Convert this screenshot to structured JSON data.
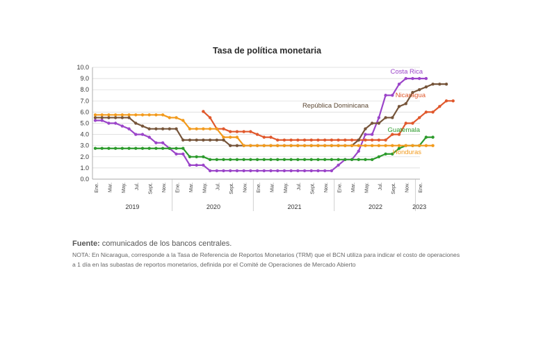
{
  "chart_data": {
    "type": "line",
    "title": "Tasa de política monetaria",
    "xlabel": "",
    "ylabel": "",
    "ylim": [
      0,
      10
    ],
    "yticks": [
      "0.0",
      "1.0",
      "2.0",
      "3.0",
      "4.0",
      "5.0",
      "6.0",
      "7.0",
      "8.0",
      "9.0",
      "10.0"
    ],
    "month_ticks": [
      "Ene.",
      "Mar.",
      "May.",
      "Jul.",
      "Sept.",
      "Nov.",
      "Ene.",
      "Mar.",
      "May.",
      "Jul.",
      "Sept.",
      "Nov.",
      "Ene.",
      "Mar.",
      "May.",
      "Jul.",
      "Sept.",
      "Nov.",
      "Ene.",
      "Mar.",
      "May.",
      "Jul.",
      "Sept.",
      "Nov.",
      "Ene."
    ],
    "years": [
      "2019",
      "2020",
      "2021",
      "2022",
      "2023"
    ],
    "grid": true,
    "series": [
      {
        "name": "Costa Rica",
        "color": "#9b45c9",
        "start": 0,
        "values": [
          5.25,
          5.25,
          5.0,
          5.0,
          4.75,
          4.5,
          4.0,
          4.0,
          3.75,
          3.25,
          3.25,
          2.75,
          2.25,
          2.25,
          1.25,
          1.25,
          1.25,
          0.75,
          0.75,
          0.75,
          0.75,
          0.75,
          0.75,
          0.75,
          0.75,
          0.75,
          0.75,
          0.75,
          0.75,
          0.75,
          0.75,
          0.75,
          0.75,
          0.75,
          0.75,
          0.75,
          1.25,
          1.75,
          1.75,
          2.5,
          4.0,
          4.0,
          5.5,
          7.5,
          7.5,
          8.5,
          9.0,
          9.0,
          9.0,
          9.0
        ]
      },
      {
        "name": "Nicaragua",
        "color": "#e0582c",
        "start": 16,
        "values": [
          6.05,
          5.5,
          4.5,
          4.5,
          4.25,
          4.25,
          4.25,
          4.25,
          4.0,
          3.75,
          3.75,
          3.5,
          3.5,
          3.5,
          3.5,
          3.5,
          3.5,
          3.5,
          3.5,
          3.5,
          3.5,
          3.5,
          3.5,
          3.5,
          3.5,
          3.5,
          3.5,
          3.5,
          4.0,
          4.0,
          5.0,
          5.0,
          5.5,
          6.0,
          6.0,
          6.5,
          7.0,
          7.0
        ]
      },
      {
        "name": "República Dominicana",
        "color": "#76553a",
        "start": 0,
        "values": [
          5.5,
          5.5,
          5.5,
          5.5,
          5.5,
          5.5,
          5.0,
          4.75,
          4.5,
          4.5,
          4.5,
          4.5,
          4.5,
          3.5,
          3.5,
          3.5,
          3.5,
          3.5,
          3.5,
          3.5,
          3.0,
          3.0,
          3.0,
          3.0,
          3.0,
          3.0,
          3.0,
          3.0,
          3.0,
          3.0,
          3.0,
          3.0,
          3.0,
          3.0,
          3.0,
          3.0,
          3.0,
          3.0,
          3.0,
          3.5,
          4.5,
          5.0,
          5.0,
          5.5,
          5.5,
          6.5,
          6.75,
          7.75,
          8.0,
          8.25,
          8.5,
          8.5,
          8.5
        ]
      },
      {
        "name": "Guatemala",
        "color": "#2d9b2d",
        "start": 0,
        "values": [
          2.75,
          2.75,
          2.75,
          2.75,
          2.75,
          2.75,
          2.75,
          2.75,
          2.75,
          2.75,
          2.75,
          2.75,
          2.75,
          2.75,
          2.0,
          2.0,
          2.0,
          1.75,
          1.75,
          1.75,
          1.75,
          1.75,
          1.75,
          1.75,
          1.75,
          1.75,
          1.75,
          1.75,
          1.75,
          1.75,
          1.75,
          1.75,
          1.75,
          1.75,
          1.75,
          1.75,
          1.75,
          1.75,
          1.75,
          1.75,
          1.75,
          1.75,
          2.0,
          2.25,
          2.25,
          2.75,
          3.0,
          3.0,
          3.0,
          3.75,
          3.75
        ]
      },
      {
        "name": "Honduras",
        "color": "#f29a1c",
        "start": 0,
        "values": [
          5.75,
          5.75,
          5.75,
          5.75,
          5.75,
          5.75,
          5.75,
          5.75,
          5.75,
          5.75,
          5.75,
          5.5,
          5.5,
          5.25,
          4.5,
          4.5,
          4.5,
          4.5,
          4.5,
          3.75,
          3.75,
          3.75,
          3.0,
          3.0,
          3.0,
          3.0,
          3.0,
          3.0,
          3.0,
          3.0,
          3.0,
          3.0,
          3.0,
          3.0,
          3.0,
          3.0,
          3.0,
          3.0,
          3.0,
          3.0,
          3.0,
          3.0,
          3.0,
          3.0,
          3.0,
          3.0,
          3.0,
          3.0,
          3.0,
          3.0,
          3.0
        ]
      }
    ],
    "source_label": "Fuente:",
    "source_text": "comunicados de los bancos centrales.",
    "note": "NOTA: En Nicaragua, corresponde a la Tasa de Referencia de Reportos Monetarios (TRM) que el BCN utiliza para indicar el costo de operaciones a 1 día en las subastas de reportos monetarios, definida por el Comité de Operaciones de Mercado Abierto"
  }
}
